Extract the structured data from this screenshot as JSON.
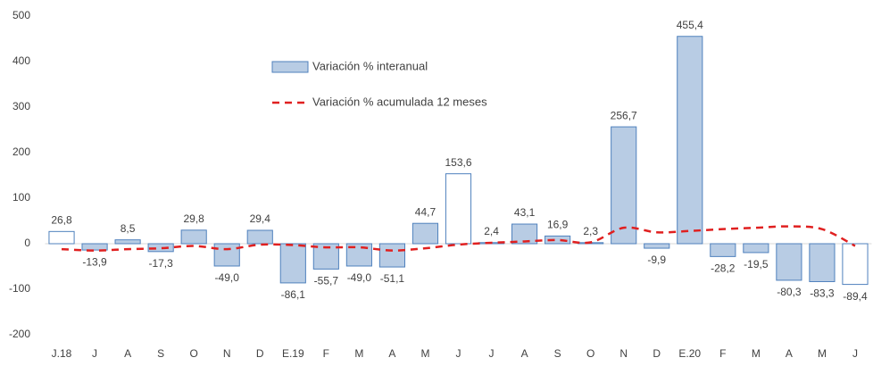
{
  "chart_data": {
    "type": "bar-line",
    "categories": [
      "J.18",
      "J",
      "A",
      "S",
      "O",
      "N",
      "D",
      "E.19",
      "F",
      "M",
      "A",
      "M",
      "J",
      "J",
      "A",
      "S",
      "O",
      "N",
      "D",
      "E.20",
      "F",
      "M",
      "A",
      "M",
      "J"
    ],
    "series": [
      {
        "name": "Variación % interanual",
        "type": "bar",
        "color": "#b8cce4",
        "edge_color": "#4f81bd",
        "colors": [
          "#ffffff",
          "#b8cce4",
          "#b8cce4",
          "#b8cce4",
          "#b8cce4",
          "#b8cce4",
          "#b8cce4",
          "#b8cce4",
          "#b8cce4",
          "#b8cce4",
          "#b8cce4",
          "#b8cce4",
          "#ffffff",
          "#b8cce4",
          "#b8cce4",
          "#b8cce4",
          "#b8cce4",
          "#b8cce4",
          "#b8cce4",
          "#b8cce4",
          "#b8cce4",
          "#b8cce4",
          "#b8cce4",
          "#b8cce4",
          "#ffffff"
        ],
        "values": [
          26.8,
          -13.9,
          8.5,
          -17.3,
          29.8,
          -49.0,
          29.4,
          -86.1,
          -55.7,
          -49.0,
          -51.1,
          44.7,
          153.6,
          2.4,
          43.1,
          16.9,
          2.3,
          256.7,
          -9.9,
          455.4,
          -28.2,
          -19.5,
          -80.3,
          -83.3,
          -89.4
        ],
        "value_labels": [
          "26,8",
          "-13,9",
          "8,5",
          "-17,3",
          "29,8",
          "-49,0",
          "29,4",
          "-86,1",
          "-55,7",
          "-49,0",
          "-51,1",
          "44,7",
          "153,6",
          "2,4",
          "43,1",
          "16,9",
          "2,3",
          "256,7",
          "-9,9",
          "455,4",
          "-28,2",
          "-19,5",
          "-80,3",
          "-83,3",
          "-89,4"
        ]
      },
      {
        "name": "Variación % acumulada 12 meses",
        "type": "line",
        "color": "#e02020",
        "values": [
          -12,
          -15,
          -12,
          -10,
          -5,
          -12,
          -2,
          -3,
          -8,
          -8,
          -15,
          -10,
          -2,
          2,
          5,
          8,
          3,
          35,
          25,
          28,
          32,
          35,
          38,
          32,
          -5
        ]
      }
    ],
    "ylim": [
      -200,
      500
    ],
    "yticks": [
      -200,
      -100,
      0,
      100,
      200,
      300,
      400,
      500
    ],
    "grid": false
  }
}
